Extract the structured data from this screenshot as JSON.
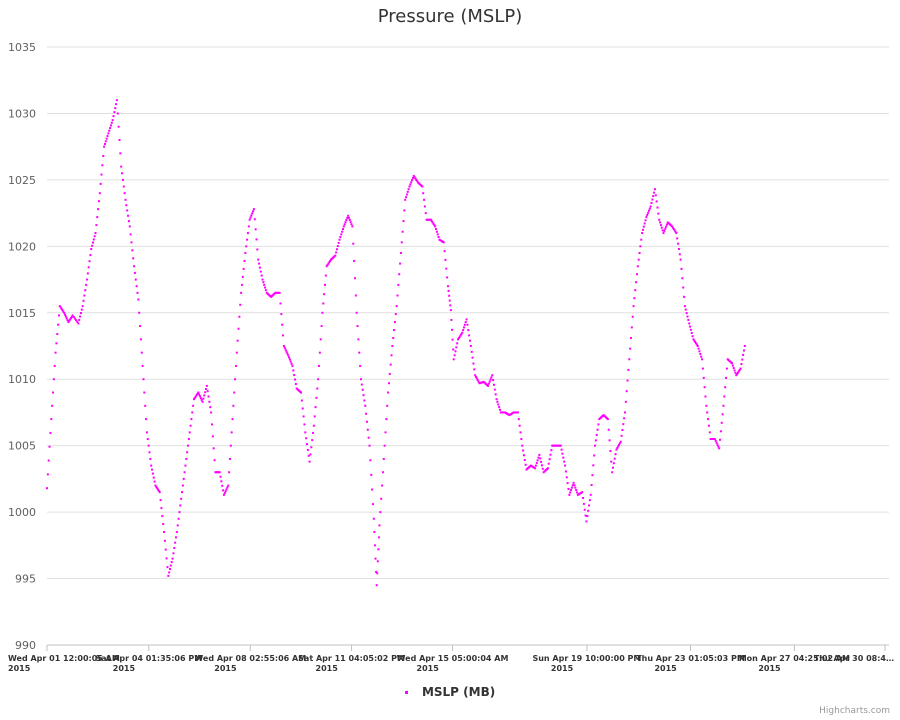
{
  "chart_data": {
    "type": "scatter",
    "title": "Pressure (MSLP)",
    "ylim": [
      990,
      1035
    ],
    "y_ticks": [
      "1035",
      "1030",
      "1025",
      "1020",
      "1015",
      "1010",
      "1005",
      "1000",
      "995",
      "990"
    ],
    "x_ticks": [
      {
        "date": "Wed Apr 01 12:00:05 AM",
        "year": "2015",
        "day": 0
      },
      {
        "date": "Sat Apr 04 01:35:06 PM",
        "year": "2015",
        "day": 3.566
      },
      {
        "date": "Wed Apr 08 02:55:06 AM",
        "year": "2015",
        "day": 7.122
      },
      {
        "date": "Sat Apr 11 04:05:02 PM",
        "year": "2015",
        "day": 10.67
      },
      {
        "date": "Wed Apr 15 05:00:04 AM",
        "year": "2015",
        "day": 14.208
      },
      {
        "date": "Sun Apr 19 10:00:00 PM",
        "year": "2015",
        "day": 18.917
      },
      {
        "date": "Thu Apr 23 01:05:03 PM",
        "year": "2015",
        "day": 22.545
      },
      {
        "date": "Mon Apr 27 04:25:02 AM",
        "year": "2015",
        "day": 26.184
      },
      {
        "date": "Thu Apr 30 08:4…",
        "year": "",
        "day": 29.36
      }
    ],
    "x_range_days": [
      0,
      29.5
    ],
    "series": [
      {
        "name": "MSLP (MB)",
        "color": "#ff00ff",
        "points": [
          [
            0,
            1001.8
          ],
          [
            0.15,
            1007
          ],
          [
            0.3,
            1012
          ],
          [
            0.45,
            1015.5
          ],
          [
            0.6,
            1015
          ],
          [
            0.75,
            1014.3
          ],
          [
            0.9,
            1014.8
          ],
          [
            1.1,
            1014.2
          ],
          [
            1.25,
            1015.5
          ],
          [
            1.4,
            1017.5
          ],
          [
            1.55,
            1019.8
          ],
          [
            1.7,
            1021
          ],
          [
            1.85,
            1024
          ],
          [
            2.0,
            1027.5
          ],
          [
            2.15,
            1028.5
          ],
          [
            2.3,
            1029.5
          ],
          [
            2.45,
            1031
          ],
          [
            2.6,
            1026
          ],
          [
            2.75,
            1023.5
          ],
          [
            2.9,
            1021.5
          ],
          [
            3.05,
            1018.5
          ],
          [
            3.2,
            1016
          ],
          [
            3.35,
            1011
          ],
          [
            3.5,
            1006
          ],
          [
            3.65,
            1003.5
          ],
          [
            3.8,
            1002
          ],
          [
            3.95,
            1001.5
          ],
          [
            4.1,
            998.5
          ],
          [
            4.25,
            995.2
          ],
          [
            4.4,
            996.5
          ],
          [
            4.55,
            998.5
          ],
          [
            4.7,
            1001
          ],
          [
            4.85,
            1003.5
          ],
          [
            5.0,
            1006
          ],
          [
            5.15,
            1008.5
          ],
          [
            5.3,
            1009
          ],
          [
            5.45,
            1008.3
          ],
          [
            5.6,
            1009.5
          ],
          [
            5.75,
            1007.5
          ],
          [
            5.9,
            1003
          ],
          [
            6.05,
            1003
          ],
          [
            6.2,
            1001.3
          ],
          [
            6.35,
            1002
          ],
          [
            6.5,
            1007
          ],
          [
            6.65,
            1012
          ],
          [
            6.8,
            1016.5
          ],
          [
            6.95,
            1019.5
          ],
          [
            7.1,
            1022
          ],
          [
            7.25,
            1022.8
          ],
          [
            7.4,
            1019
          ],
          [
            7.55,
            1017.5
          ],
          [
            7.7,
            1016.5
          ],
          [
            7.85,
            1016.2
          ],
          [
            8.0,
            1016.5
          ],
          [
            8.15,
            1016.5
          ],
          [
            8.3,
            1012.5
          ],
          [
            8.45,
            1011.8
          ],
          [
            8.6,
            1011
          ],
          [
            8.75,
            1009.3
          ],
          [
            8.9,
            1009
          ],
          [
            9.05,
            1006
          ],
          [
            9.2,
            1003.8
          ],
          [
            9.35,
            1006.5
          ],
          [
            9.5,
            1010
          ],
          [
            9.65,
            1015
          ],
          [
            9.8,
            1018.5
          ],
          [
            9.95,
            1019
          ],
          [
            10.1,
            1019.3
          ],
          [
            10.25,
            1020.5
          ],
          [
            10.4,
            1021.5
          ],
          [
            10.55,
            1022.3
          ],
          [
            10.7,
            1021.5
          ],
          [
            10.85,
            1015
          ],
          [
            11.0,
            1010
          ],
          [
            11.15,
            1008
          ],
          [
            11.3,
            1005
          ],
          [
            11.45,
            999.5
          ],
          [
            11.55,
            994.5
          ],
          [
            11.65,
            999
          ],
          [
            11.8,
            1004
          ],
          [
            11.95,
            1009
          ],
          [
            12.1,
            1012.5
          ],
          [
            12.25,
            1015.5
          ],
          [
            12.4,
            1019.5
          ],
          [
            12.55,
            1023.5
          ],
          [
            12.7,
            1024.5
          ],
          [
            12.85,
            1025.3
          ],
          [
            13.0,
            1024.8
          ],
          [
            13.15,
            1024.5
          ],
          [
            13.3,
            1022
          ],
          [
            13.45,
            1022
          ],
          [
            13.6,
            1021.5
          ],
          [
            13.75,
            1020.5
          ],
          [
            13.9,
            1020.3
          ],
          [
            14.05,
            1017
          ],
          [
            14.15,
            1015.2
          ],
          [
            14.25,
            1011.5
          ],
          [
            14.4,
            1013
          ],
          [
            14.55,
            1013.5
          ],
          [
            14.7,
            1014.5
          ],
          [
            14.85,
            1012.5
          ],
          [
            15.0,
            1010.3
          ],
          [
            15.15,
            1009.7
          ],
          [
            15.3,
            1009.8
          ],
          [
            15.45,
            1009.5
          ],
          [
            15.6,
            1010.3
          ],
          [
            15.75,
            1008.5
          ],
          [
            15.9,
            1007.5
          ],
          [
            16.05,
            1007.5
          ],
          [
            16.2,
            1007.3
          ],
          [
            16.35,
            1007.5
          ],
          [
            16.5,
            1007.5
          ],
          [
            16.65,
            1005
          ],
          [
            16.8,
            1003.2
          ],
          [
            16.95,
            1003.5
          ],
          [
            17.1,
            1003.3
          ],
          [
            17.25,
            1004.3
          ],
          [
            17.4,
            1003
          ],
          [
            17.55,
            1003.3
          ],
          [
            17.7,
            1005
          ],
          [
            17.85,
            1005
          ],
          [
            18.0,
            1005
          ],
          [
            18.15,
            1003.5
          ],
          [
            18.3,
            1001.3
          ],
          [
            18.45,
            1002.2
          ],
          [
            18.6,
            1001.3
          ],
          [
            18.75,
            1001.5
          ],
          [
            18.9,
            999.3
          ],
          [
            19.05,
            1001.3
          ],
          [
            19.2,
            1005
          ],
          [
            19.35,
            1007
          ],
          [
            19.5,
            1007.3
          ],
          [
            19.65,
            1007
          ],
          [
            19.8,
            1003
          ],
          [
            19.95,
            1004.7
          ],
          [
            20.1,
            1005.3
          ],
          [
            20.25,
            1007.5
          ],
          [
            20.4,
            1011.5
          ],
          [
            20.55,
            1015.5
          ],
          [
            20.7,
            1018.5
          ],
          [
            20.85,
            1021
          ],
          [
            21.0,
            1022.2
          ],
          [
            21.15,
            1023
          ],
          [
            21.3,
            1024.3
          ],
          [
            21.45,
            1022
          ],
          [
            21.6,
            1021
          ],
          [
            21.75,
            1021.8
          ],
          [
            21.9,
            1021.5
          ],
          [
            22.05,
            1021
          ],
          [
            22.2,
            1019
          ],
          [
            22.35,
            1015.5
          ],
          [
            22.5,
            1014.2
          ],
          [
            22.65,
            1013
          ],
          [
            22.8,
            1012.5
          ],
          [
            22.95,
            1011.5
          ],
          [
            23.1,
            1008
          ],
          [
            23.25,
            1005.5
          ],
          [
            23.4,
            1005.5
          ],
          [
            23.55,
            1004.8
          ],
          [
            23.7,
            1008
          ],
          [
            23.85,
            1011.5
          ],
          [
            24.0,
            1011.2
          ],
          [
            24.15,
            1010.3
          ],
          [
            24.3,
            1010.8
          ],
          [
            24.45,
            1012.5
          ]
        ]
      }
    ],
    "grid": true,
    "legend_position": "bottom-center"
  },
  "legend": {
    "label": "MSLP (MB)"
  },
  "credits": "Highcharts.com"
}
